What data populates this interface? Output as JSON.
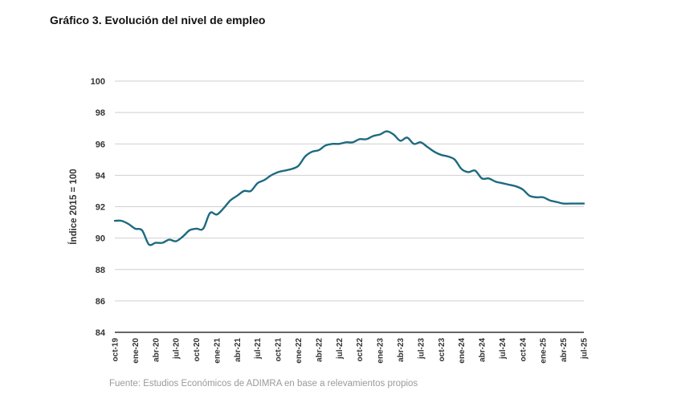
{
  "title": "Gráfico 3. Evolución del nivel de empleo",
  "source": "Fuente: Estudios Económicos de ADIMRA en base a relevamientos propios",
  "colors": {
    "line": "#1d6a80",
    "grid": "#cfcfcf",
    "axis": "#333333"
  },
  "chart_data": {
    "type": "line",
    "title": "Gráfico 3. Evolución del nivel de empleo",
    "xlabel": "",
    "ylabel": "Índice 2015 = 100",
    "ylim": [
      84,
      100
    ],
    "yticks": [
      84,
      86,
      88,
      90,
      92,
      94,
      96,
      98,
      100
    ],
    "grid": true,
    "x": [
      "oct-19",
      "nov-19",
      "dic-19",
      "ene-20",
      "feb-20",
      "mar-20",
      "abr-20",
      "may-20",
      "jun-20",
      "jul-20",
      "ago-20",
      "sep-20",
      "oct-20",
      "nov-20",
      "dic-20",
      "ene-21",
      "feb-21",
      "mar-21",
      "abr-21",
      "may-21",
      "jun-21",
      "jul-21",
      "ago-21",
      "sep-21",
      "oct-21",
      "nov-21",
      "dic-21",
      "ene-22",
      "feb-22",
      "mar-22",
      "abr-22",
      "may-22",
      "jun-22",
      "jul-22",
      "ago-22",
      "sep-22",
      "oct-22",
      "nov-22",
      "dic-22",
      "ene-23",
      "feb-23",
      "mar-23",
      "abr-23",
      "may-23",
      "jun-23",
      "jul-23",
      "ago-23",
      "sep-23",
      "oct-23",
      "nov-23",
      "dic-23",
      "ene-24",
      "feb-24",
      "mar-24",
      "abr-24",
      "may-24",
      "jun-24",
      "jul-24",
      "ago-24",
      "sep-24",
      "oct-24",
      "nov-24",
      "dic-24",
      "ene-25",
      "feb-25",
      "mar-25",
      "abr-25",
      "may-25",
      "jun-25",
      "jul-25"
    ],
    "xtick_labels": [
      "oct-19",
      "ene-20",
      "abr-20",
      "jul-20",
      "oct-20",
      "ene-21",
      "abr-21",
      "jul-21",
      "oct-21",
      "ene-22",
      "abr-22",
      "jul-22",
      "oct-22",
      "ene-23",
      "abr-23",
      "jul-23",
      "oct-23",
      "ene-24",
      "abr-24",
      "jul-24",
      "oct-24",
      "ene-25",
      "abr-25",
      "jul-25"
    ],
    "series": [
      {
        "values": [
          91.1,
          91.1,
          90.9,
          90.6,
          90.5,
          89.6,
          89.7,
          89.7,
          89.9,
          89.8,
          90.1,
          90.5,
          90.6,
          90.6,
          91.6,
          91.5,
          91.9,
          92.4,
          92.7,
          93.0,
          93.0,
          93.5,
          93.7,
          94.0,
          94.2,
          94.3,
          94.4,
          94.6,
          95.2,
          95.5,
          95.6,
          95.9,
          96.0,
          96.0,
          96.1,
          96.1,
          96.3,
          96.3,
          96.5,
          96.6,
          96.8,
          96.6,
          96.2,
          96.4,
          96.0,
          96.1,
          95.8,
          95.5,
          95.3,
          95.2,
          95.0,
          94.4,
          94.2,
          94.3,
          93.8,
          93.8,
          93.6,
          93.5,
          93.4,
          93.3,
          93.1,
          92.7,
          92.6,
          92.6,
          92.4,
          92.3,
          92.2,
          92.2,
          92.2,
          92.2
        ]
      }
    ]
  }
}
